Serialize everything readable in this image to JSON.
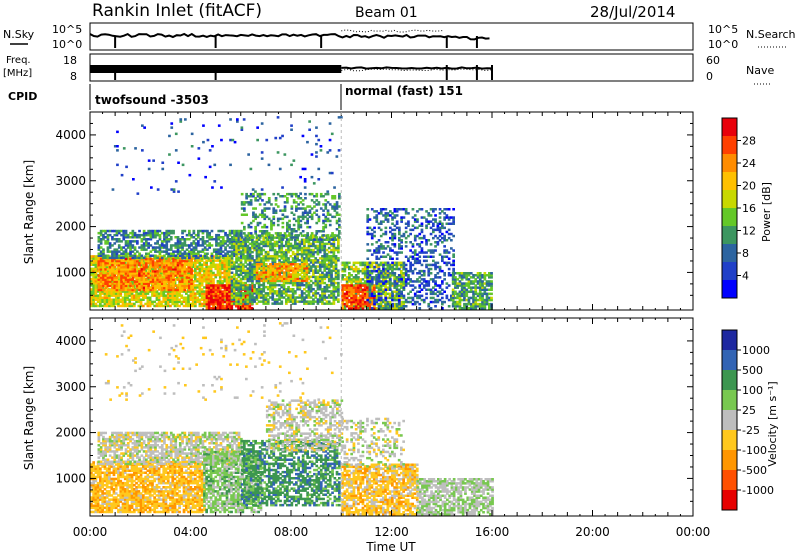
{
  "header": {
    "station": "Rankin Inlet (fitACF)",
    "beam": "Beam 01",
    "date": "28/Jul/2014"
  },
  "panels": {
    "nsky": {
      "label": "N.Sky",
      "left_ticks": [
        "10^5",
        "10^0"
      ],
      "right_ticks": [
        "10^5",
        "10^0"
      ],
      "right_label": "N.Search"
    },
    "freq": {
      "label_line1": "Freq.",
      "label_line2": "[MHz]",
      "left_ticks": [
        "18",
        "8"
      ],
      "right_ticks": [
        "60",
        "0"
      ],
      "right_label": "Nave"
    },
    "cpid": {
      "label": "CPID",
      "mode1": "twofsound -3503",
      "mode2": "normal (fast) 151"
    }
  },
  "axes": {
    "x_title": "Time UT",
    "x_ticks": [
      "00:00",
      "04:00",
      "08:00",
      "12:00",
      "16:00",
      "20:00",
      "00:00"
    ],
    "y_title": "Slant Range [km]",
    "y_ticks": [
      "1000",
      "2000",
      "3000",
      "4000"
    ]
  },
  "colorbars": {
    "power": {
      "title": "Power [dB]",
      "labels": [
        "28",
        "24",
        "20",
        "16",
        "12",
        "8",
        "4"
      ],
      "colors": [
        "#e8000b",
        "#ff4000",
        "#ff8c00",
        "#ffc000",
        "#c8d800",
        "#64c828",
        "#3c9660",
        "#2c64a0",
        "#2040c8",
        "#0000ff"
      ]
    },
    "velocity": {
      "title": "Velocity [m s⁻¹]",
      "labels": [
        "1000",
        "500",
        "100",
        "25",
        "-25",
        "-100",
        "-500",
        "-1000"
      ],
      "colors": [
        "#1e28a0",
        "#3264b4",
        "#3c9650",
        "#78c850",
        "#bebebe",
        "#ffc81e",
        "#ff9600",
        "#ff5000",
        "#e60000"
      ]
    }
  },
  "chart_data": [
    {
      "type": "heatmap",
      "name_in_image": "Power [dB]",
      "x_range_hours": [
        0,
        24
      ],
      "y_range_km": [
        180,
        4500
      ],
      "xlabel": "Time UT",
      "ylabel": "Slant Range [km]",
      "colorbar_range": [
        0,
        32
      ],
      "mode_switch_time": "10:00",
      "blobs": [
        {
          "t0": 0.0,
          "t1": 5.6,
          "r0": 250,
          "r1": 1350,
          "density": 0.85,
          "value": 18
        },
        {
          "t0": 0.3,
          "t1": 4.0,
          "r0": 600,
          "r1": 1300,
          "density": 0.8,
          "value": 24
        },
        {
          "t0": 0.3,
          "t1": 6.0,
          "r0": 1300,
          "r1": 1900,
          "density": 0.6,
          "value": 10
        },
        {
          "t0": 4.6,
          "t1": 6.4,
          "r0": 200,
          "r1": 700,
          "density": 0.9,
          "value": 29
        },
        {
          "t0": 5.6,
          "t1": 9.9,
          "r0": 300,
          "r1": 1800,
          "density": 0.75,
          "value": 13
        },
        {
          "t0": 6.6,
          "t1": 8.6,
          "r0": 800,
          "r1": 1200,
          "density": 0.75,
          "value": 22
        },
        {
          "t0": 6.0,
          "t1": 9.9,
          "r0": 1700,
          "r1": 2700,
          "density": 0.35,
          "value": 11
        },
        {
          "t0": 10.0,
          "t1": 12.5,
          "r0": 200,
          "r1": 1200,
          "density": 0.75,
          "value": 15
        },
        {
          "t0": 10.0,
          "t1": 11.3,
          "r0": 200,
          "r1": 700,
          "density": 0.85,
          "value": 27
        },
        {
          "t0": 11.0,
          "t1": 14.5,
          "r0": 200,
          "r1": 2400,
          "density": 0.35,
          "value": 7
        },
        {
          "t0": 14.4,
          "t1": 16.0,
          "r0": 200,
          "r1": 1000,
          "density": 0.75,
          "value": 12
        },
        {
          "t0": 0.5,
          "t1": 10.0,
          "r0": 2700,
          "r1": 4400,
          "density": 0.03,
          "value": 6
        }
      ]
    },
    {
      "type": "heatmap",
      "name_in_image": "Velocity [m s-1]",
      "x_range_hours": [
        0,
        24
      ],
      "y_range_km": [
        180,
        4500
      ],
      "xlabel": "Time UT",
      "ylabel": "Slant Range [km]",
      "colorbar_range": [
        -1000,
        1000
      ],
      "blobs": [
        {
          "t0": 0.0,
          "t1": 4.5,
          "r0": 250,
          "r1": 1350,
          "density": 0.8,
          "value": -180
        },
        {
          "t0": 0.3,
          "t1": 6.0,
          "r0": 1300,
          "r1": 2000,
          "density": 0.7,
          "value": 0
        },
        {
          "t0": 4.5,
          "t1": 6.8,
          "r0": 250,
          "r1": 1600,
          "density": 0.75,
          "value": 140
        },
        {
          "t0": 6.0,
          "t1": 9.9,
          "r0": 400,
          "r1": 1800,
          "density": 0.6,
          "value": 320
        },
        {
          "t0": 7.0,
          "t1": 10.0,
          "r0": 1600,
          "r1": 2700,
          "density": 0.5,
          "value": 0
        },
        {
          "t0": 10.0,
          "t1": 13.0,
          "r0": 200,
          "r1": 1300,
          "density": 0.75,
          "value": -160
        },
        {
          "t0": 10.0,
          "t1": 12.5,
          "r0": 1200,
          "r1": 2300,
          "density": 0.3,
          "value": 0
        },
        {
          "t0": 13.0,
          "t1": 16.0,
          "r0": 200,
          "r1": 1000,
          "density": 0.7,
          "value": 60
        },
        {
          "t0": 0.5,
          "t1": 10.0,
          "r0": 2700,
          "r1": 4400,
          "density": 0.03,
          "value": -90
        }
      ]
    }
  ]
}
